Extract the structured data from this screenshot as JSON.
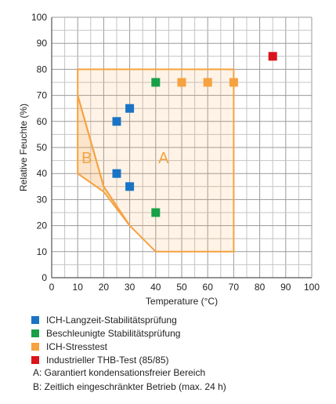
{
  "chart_data": {
    "type": "scatter",
    "xlabel": "Temperature (°C)",
    "ylabel": "Relative Feuchte (%)",
    "xlim": [
      0,
      100
    ],
    "ylim": [
      0,
      100
    ],
    "xticks": [
      "0",
      "10",
      "20",
      "30",
      "40",
      "50",
      "60",
      "70",
      "80",
      "90",
      "100"
    ],
    "yticks": [
      "0",
      "10",
      "20",
      "30",
      "40",
      "50",
      "60",
      "70",
      "80",
      "90",
      "100"
    ],
    "grid": true,
    "legend_position": "below",
    "regions": [
      {
        "label": "A",
        "color": "#f6a240",
        "polygon": [
          [
            10,
            80
          ],
          [
            70,
            80
          ],
          [
            70,
            10
          ],
          [
            40,
            10
          ],
          [
            30,
            20
          ],
          [
            20,
            35
          ],
          [
            10,
            70
          ]
        ]
      },
      {
        "label": "B",
        "color": "#f6a240",
        "polygon": [
          [
            10,
            70
          ],
          [
            20,
            35
          ],
          [
            30,
            20
          ],
          [
            20,
            33
          ],
          [
            10,
            40
          ]
        ]
      }
    ],
    "series": [
      {
        "name": "ICH-Langzeit-Stabilitätsprüfung",
        "color": "#1a74c6",
        "points": [
          [
            25,
            60
          ],
          [
            30,
            65
          ],
          [
            25,
            40
          ],
          [
            30,
            35
          ]
        ]
      },
      {
        "name": "Beschleunigte Stabilitätsprüfung",
        "color": "#18a048",
        "points": [
          [
            40,
            75
          ],
          [
            40,
            25
          ]
        ]
      },
      {
        "name": "ICH-Stresstest",
        "color": "#f6a240",
        "points": [
          [
            50,
            75
          ],
          [
            60,
            75
          ],
          [
            70,
            75
          ]
        ]
      },
      {
        "name": "Industrieller THB-Test (85/85)",
        "color": "#d9141a",
        "points": [
          [
            85,
            85
          ]
        ]
      }
    ]
  },
  "notes": [
    "A: Garantiert kondensationsfreier Bereich",
    "B: Zeitlich eingeschränkter Betrieb (max. 24 h)"
  ]
}
